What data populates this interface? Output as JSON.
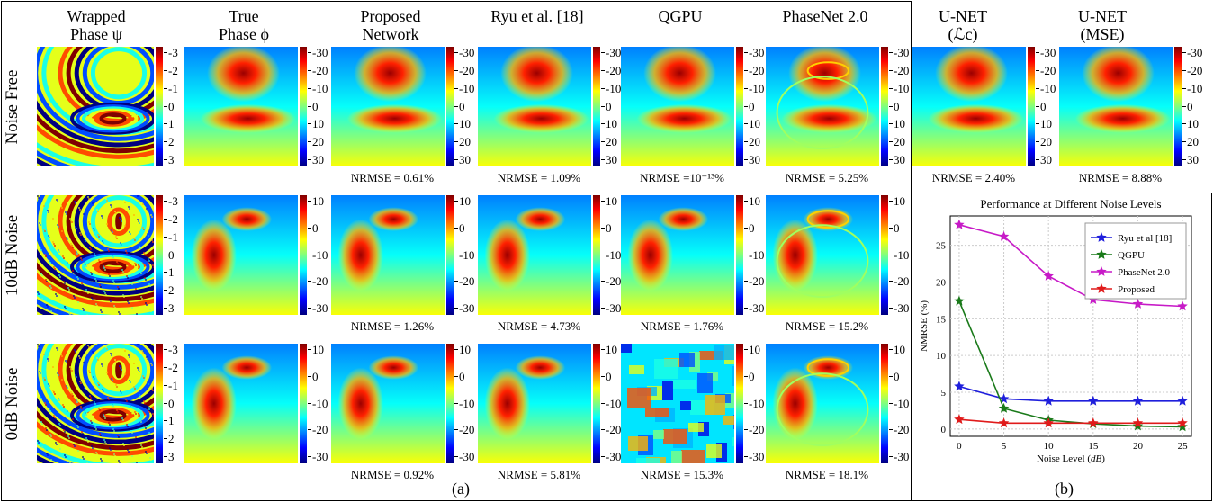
{
  "columns": [
    {
      "title": "Wrapped\nPhase ψ"
    },
    {
      "title": "True\nPhase ϕ"
    },
    {
      "title": "Proposed\nNetwork"
    },
    {
      "title": "Ryu et al. [18]"
    },
    {
      "title": "QGPU"
    },
    {
      "title": "PhaseNet 2.0"
    },
    {
      "title": "U-NET\n(ℒc)"
    },
    {
      "title": "U-NET\n(MSE)"
    }
  ],
  "rows": [
    {
      "label": "Noise Free",
      "nrmse": [
        "",
        "",
        "NRMSE = 0.61%",
        "NRMSE = 1.09%",
        "NRMSE =10⁻¹³%",
        "NRMSE = 5.25%",
        "NRMSE = 2.40%",
        "NRMSE = 8.88%"
      ]
    },
    {
      "label": "10dB Noise",
      "nrmse": [
        "",
        "",
        "NRMSE = 1.26%",
        "NRMSE = 4.73%",
        "NRMSE = 1.76%",
        "NRMSE = 15.2%",
        "",
        ""
      ]
    },
    {
      "label": "0dB Noise",
      "nrmse": [
        "",
        "",
        "NRMSE = 0.92%",
        "NRMSE = 5.81%",
        "NRMSE = 15.3%",
        "NRMSE = 18.1%",
        "",
        ""
      ]
    }
  ],
  "colorbars": {
    "wrapped": [
      "-3",
      "-2",
      "-1",
      "0",
      "1",
      "2",
      "3"
    ],
    "row1": [
      "-30",
      "-20",
      "-10",
      "0",
      "10",
      "20",
      "30"
    ],
    "row23": [
      "10",
      "0",
      "-10",
      "-20",
      "-30"
    ]
  },
  "panel_a_label": "(a)",
  "panel_b_label": "(b)",
  "chart_data": {
    "type": "line",
    "title": "Performance at Different Noise Levels",
    "xlabel": "Noise Level (dB)",
    "ylabel": "NMRSE (%)",
    "x": [
      0,
      5,
      10,
      15,
      20,
      25
    ],
    "xticks": [
      "0",
      "5",
      "10",
      "15",
      "20",
      "25"
    ],
    "yticks": [
      "0",
      "5",
      "10",
      "15",
      "20",
      "25"
    ],
    "xlim": [
      -1,
      26
    ],
    "ylim": [
      -1,
      29
    ],
    "grid": true,
    "legend": "top-right",
    "series": [
      {
        "name": "Ryu et al [18]",
        "color": "#1f1fdc",
        "values": [
          5.8,
          4.1,
          3.8,
          3.8,
          3.8,
          3.8
        ]
      },
      {
        "name": "QGPU",
        "color": "#1a7a1a",
        "values": [
          17.4,
          2.8,
          1.2,
          0.7,
          0.4,
          0.3
        ]
      },
      {
        "name": "PhaseNet 2.0",
        "color": "#c71ac7",
        "values": [
          27.8,
          26.2,
          20.8,
          17.6,
          17.0,
          16.7
        ]
      },
      {
        "name": "Proposed",
        "color": "#e01b1b",
        "values": [
          1.3,
          0.8,
          0.8,
          0.8,
          0.8,
          0.8
        ]
      }
    ]
  }
}
